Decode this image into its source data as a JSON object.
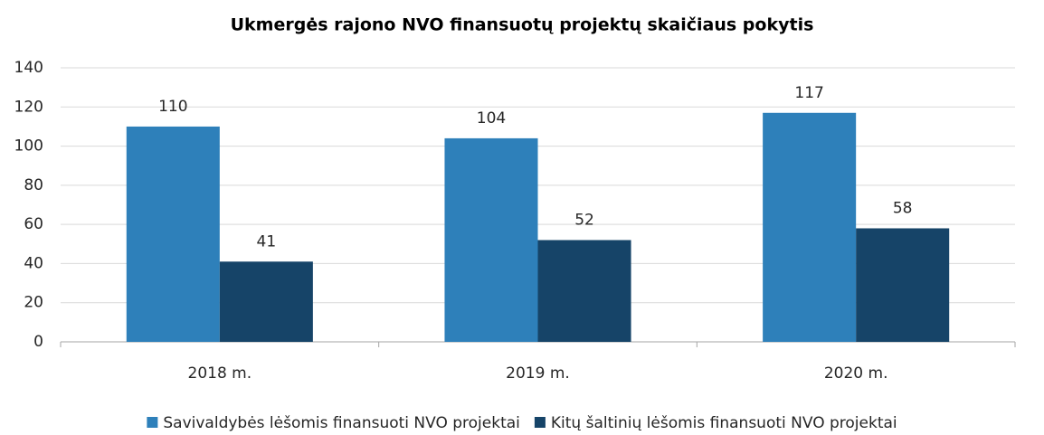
{
  "chart_data": {
    "type": "bar",
    "title": "Ukmergės rajono NVO finansuotų projektų skaičiaus pokytis",
    "categories": [
      "2018 m.",
      "2019 m.",
      "2020 m."
    ],
    "series": [
      {
        "name": "Savivaldybės lėšomis finansuoti NVO projektai",
        "color": "#2e80ba",
        "values": [
          110,
          104,
          117
        ]
      },
      {
        "name": "Kitų šaltinių lėšomis finansuoti NVO projektai",
        "color": "#164468",
        "values": [
          41,
          52,
          58
        ]
      }
    ],
    "ylim": [
      0,
      140
    ],
    "yticks": [
      0,
      20,
      40,
      60,
      80,
      100,
      120,
      140
    ],
    "grid": true,
    "legend": "bottom"
  }
}
